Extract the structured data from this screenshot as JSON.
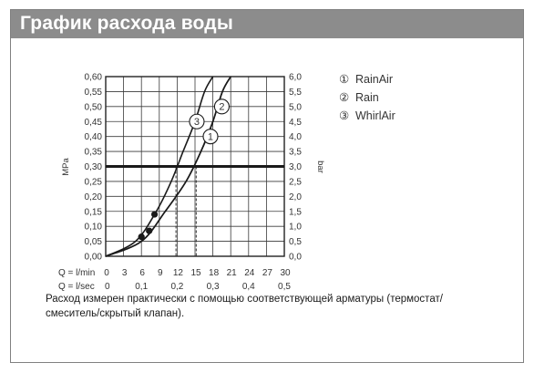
{
  "header": {
    "title": "График расхода воды"
  },
  "note": "Расход измерен практически с помощью соответствующей арматуры (термостат/ смеситель/скрытый клапан).",
  "chart_data": {
    "type": "line",
    "y_left": {
      "label": "MPa",
      "ticks": [
        "0,60",
        "0,55",
        "0,50",
        "0,45",
        "0,40",
        "0,35",
        "0,30",
        "0,25",
        "0,20",
        "0,15",
        "0,10",
        "0,05",
        "0,00"
      ],
      "range": [
        0,
        0.6
      ]
    },
    "y_right": {
      "label": "bar",
      "ticks": [
        "6,0",
        "5,5",
        "5,0",
        "4,5",
        "4,0",
        "3,5",
        "3,0",
        "2,5",
        "2,0",
        "1,5",
        "1,0",
        "0,5",
        "0,0"
      ],
      "range": [
        0,
        6
      ]
    },
    "x_lmin": {
      "label": "Q = l/min",
      "ticks": [
        "0",
        "3",
        "6",
        "9",
        "12",
        "15",
        "18",
        "21",
        "24",
        "27",
        "30"
      ],
      "range": [
        0,
        30
      ]
    },
    "x_lsec": {
      "label": "Q = l/sec",
      "ticks": [
        "0",
        "0,1",
        "0,2",
        "0,3",
        "0,4",
        "0,5"
      ]
    },
    "reference_pressure": 0.3,
    "series": [
      {
        "name": "RainAir",
        "marker": "①",
        "points": [
          [
            0,
            0
          ],
          [
            6,
            0.05
          ],
          [
            10,
            0.15
          ],
          [
            13.5,
            0.25
          ],
          [
            16,
            0.35
          ],
          [
            18,
            0.45
          ],
          [
            19.6,
            0.55
          ],
          [
            21,
            0.6
          ]
        ]
      },
      {
        "name": "Rain",
        "marker": "②",
        "points": [
          [
            0,
            0
          ],
          [
            6,
            0.05
          ],
          [
            10,
            0.15
          ],
          [
            13.5,
            0.25
          ],
          [
            16,
            0.35
          ],
          [
            18,
            0.45
          ],
          [
            19.6,
            0.55
          ],
          [
            21,
            0.6
          ]
        ]
      },
      {
        "name": "WhirlAir",
        "marker": "③",
        "points": [
          [
            0,
            0
          ],
          [
            5,
            0.05
          ],
          [
            8.5,
            0.15
          ],
          [
            11,
            0.25
          ],
          [
            13,
            0.35
          ],
          [
            15,
            0.45
          ],
          [
            16.6,
            0.55
          ],
          [
            18,
            0.6
          ]
        ]
      }
    ],
    "dots": [
      [
        6,
        0.065
      ],
      [
        7.3,
        0.085
      ],
      [
        8.2,
        0.14
      ]
    ],
    "drop_lines_x": [
      11.8,
      15.2
    ],
    "curve_labels": [
      {
        "marker": "3",
        "at": [
          15.3,
          0.45
        ]
      },
      {
        "marker": "2",
        "at": [
          19.5,
          0.5
        ]
      },
      {
        "marker": "1",
        "at": [
          17.6,
          0.4
        ]
      }
    ],
    "legend": [
      {
        "marker": "①",
        "label": "RainAir"
      },
      {
        "marker": "②",
        "label": "Rain"
      },
      {
        "marker": "③",
        "label": "WhirlAir"
      }
    ],
    "legend_position": "right",
    "grid": true
  }
}
